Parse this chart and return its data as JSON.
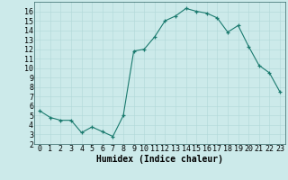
{
  "x": [
    0,
    1,
    2,
    3,
    4,
    5,
    6,
    7,
    8,
    9,
    10,
    11,
    12,
    13,
    14,
    15,
    16,
    17,
    18,
    19,
    20,
    21,
    22,
    23
  ],
  "y": [
    5.5,
    4.8,
    4.5,
    4.5,
    3.2,
    3.8,
    3.3,
    2.8,
    5.0,
    11.8,
    12.0,
    13.3,
    15.0,
    15.5,
    16.3,
    16.0,
    15.8,
    15.3,
    13.8,
    14.5,
    12.3,
    10.3,
    9.5,
    7.5
  ],
  "xlabel": "Humidex (Indice chaleur)",
  "xlim": [
    -0.5,
    23.5
  ],
  "ylim": [
    2,
    17
  ],
  "yticks": [
    2,
    3,
    4,
    5,
    6,
    7,
    8,
    9,
    10,
    11,
    12,
    13,
    14,
    15,
    16
  ],
  "xticks": [
    0,
    1,
    2,
    3,
    4,
    5,
    6,
    7,
    8,
    9,
    10,
    11,
    12,
    13,
    14,
    15,
    16,
    17,
    18,
    19,
    20,
    21,
    22,
    23
  ],
  "line_color": "#1a7a6e",
  "bg_color": "#cceaea",
  "grid_color": "#b0d8d8",
  "label_fontsize": 7,
  "tick_fontsize": 6
}
